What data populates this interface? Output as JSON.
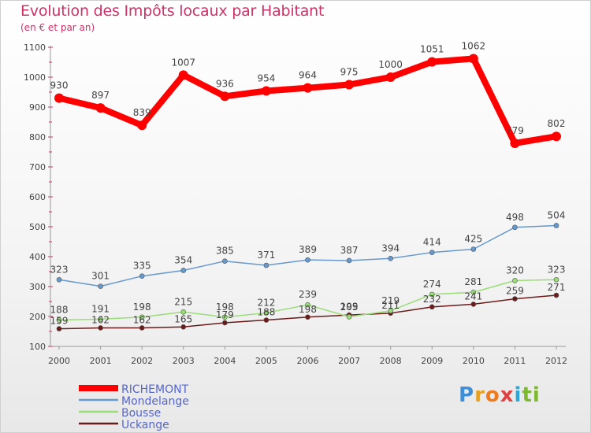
{
  "title": "Evolution des Impôts locaux par Habitant",
  "subtitle": "(en € et par an)",
  "logo": {
    "text": "Proxiti"
  },
  "chart_data": {
    "type": "line",
    "x": [
      "2000",
      "2001",
      "2002",
      "2003",
      "2004",
      "2005",
      "2006",
      "2007",
      "2008",
      "2009",
      "2010",
      "2011",
      "2012"
    ],
    "ylim": [
      100,
      1100
    ],
    "yticks": [
      "100",
      "200",
      "300",
      "400",
      "500",
      "600",
      "700",
      "800",
      "900",
      "1000",
      "1100"
    ],
    "grid": false,
    "legend_position": "bottom-left",
    "series": [
      {
        "name": "RICHEMONT",
        "color": "#ff0000",
        "values": [
          930,
          897,
          839,
          1007,
          936,
          954,
          964,
          975,
          1000,
          1051,
          1062,
          779,
          802
        ]
      },
      {
        "name": "Mondelange",
        "color": "#6699cc",
        "values": [
          323,
          301,
          335,
          354,
          385,
          371,
          389,
          387,
          394,
          414,
          425,
          498,
          504
        ]
      },
      {
        "name": "Bousse",
        "color": "#99dd77",
        "values": [
          188,
          191,
          198,
          215,
          198,
          212,
          239,
          199,
          219,
          274,
          281,
          320,
          323
        ]
      },
      {
        "name": "Uckange",
        "color": "#6b1a1a",
        "values": [
          159,
          162,
          162,
          165,
          179,
          188,
          198,
          205,
          211,
          232,
          241,
          259,
          271
        ]
      }
    ]
  }
}
